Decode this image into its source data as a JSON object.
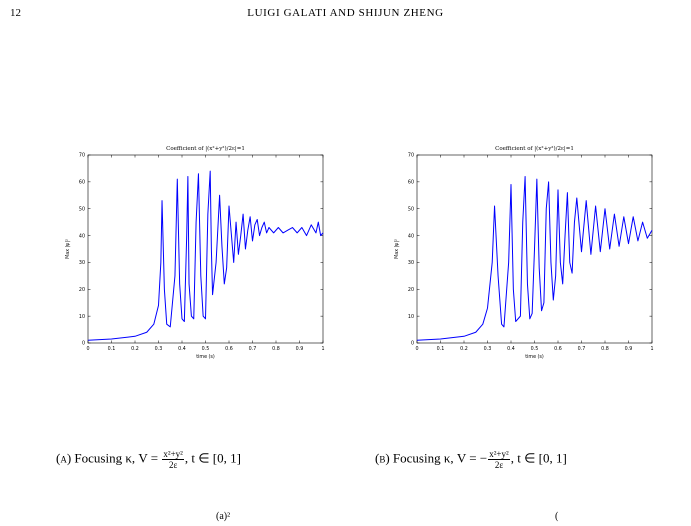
{
  "header": {
    "page_number": "12",
    "running_head": "LUIGI GALATI AND SHIJUN ZHENG"
  },
  "figures": [
    {
      "title": "Coefficient of |(x²+y²)/2ε|=1",
      "ylabel": "Max |ψ|²",
      "xlabel": "time (s)"
    },
    {
      "title": "Coefficient of |(x²+y²)/2ε|=1",
      "ylabel": "Max |ψ|²",
      "xlabel": "time (s)"
    }
  ],
  "captions": [
    {
      "label": "(a)",
      "text_before": "Focusing κ, V = ",
      "num": "x²+y²",
      "den": "2ε",
      "text_after": ", t ∈ [0, 1]"
    },
    {
      "label": "(b)",
      "text_before": "Focusing κ,  V = −",
      "num": "x²+y²",
      "den": "2ε",
      "text_after": ", t ∈ [0, 1]"
    }
  ],
  "bottom_text": [
    "(a)²",
    "("
  ],
  "chart_data": [
    {
      "type": "line",
      "title": "Coefficient of |(x²+y²)/2ε|=1",
      "xlabel": "time (s)",
      "ylabel": "Max |ψ|²",
      "xlim": [
        0,
        1
      ],
      "ylim": [
        0,
        70
      ],
      "xticks": [
        "0",
        "0.1",
        "0.2",
        "0.3",
        "0.4",
        "0.5",
        "0.6",
        "0.7",
        "0.8",
        "0.9",
        "1"
      ],
      "yticks": [
        "0",
        "10",
        "20",
        "30",
        "40",
        "50",
        "60",
        "70"
      ],
      "color": "#0000ff",
      "series": [
        {
          "x": [
            0,
            0.1,
            0.2,
            0.25,
            0.28,
            0.3,
            0.31,
            0.315,
            0.325,
            0.335,
            0.35,
            0.37,
            0.38,
            0.39,
            0.4,
            0.41,
            0.42,
            0.425,
            0.43,
            0.44,
            0.45,
            0.46,
            0.47,
            0.48,
            0.49,
            0.5,
            0.51,
            0.52,
            0.525,
            0.53,
            0.545,
            0.56,
            0.57,
            0.58,
            0.59,
            0.6,
            0.62,
            0.63,
            0.64,
            0.65,
            0.66,
            0.67,
            0.68,
            0.69,
            0.7,
            0.71,
            0.72,
            0.73,
            0.74,
            0.75,
            0.76,
            0.77,
            0.79,
            0.81,
            0.83,
            0.85,
            0.87,
            0.89,
            0.91,
            0.93,
            0.95,
            0.97,
            0.98,
            0.99,
            1.0
          ],
          "y": [
            1,
            1.5,
            2.5,
            4,
            7,
            14,
            30,
            53,
            20,
            7,
            6,
            25,
            61,
            22,
            9,
            8,
            40,
            62,
            22,
            10,
            9,
            45,
            63,
            25,
            10,
            9,
            48,
            64,
            35,
            18,
            30,
            55,
            36,
            22,
            28,
            51,
            30,
            45,
            33,
            40,
            48,
            35,
            42,
            47,
            38,
            44,
            46,
            40,
            43,
            45,
            41,
            43,
            41,
            43,
            41,
            42,
            43,
            41,
            43,
            40,
            44,
            41,
            45,
            40,
            41
          ]
        }
      ]
    },
    {
      "type": "line",
      "title": "Coefficient of |(x²+y²)/2ε|=1",
      "xlabel": "time (s)",
      "ylabel": "Max |ψ|²",
      "xlim": [
        0,
        1
      ],
      "ylim": [
        0,
        70
      ],
      "xticks": [
        "0",
        "0.1",
        "0.2",
        "0.3",
        "0.4",
        "0.5",
        "0.6",
        "0.7",
        "0.8",
        "0.9",
        "1"
      ],
      "yticks": [
        "0",
        "10",
        "20",
        "30",
        "40",
        "50",
        "60",
        "70"
      ],
      "color": "#0000ff",
      "series": [
        {
          "x": [
            0,
            0.1,
            0.2,
            0.25,
            0.28,
            0.3,
            0.32,
            0.33,
            0.345,
            0.36,
            0.37,
            0.39,
            0.4,
            0.41,
            0.42,
            0.44,
            0.45,
            0.46,
            0.47,
            0.48,
            0.49,
            0.5,
            0.51,
            0.52,
            0.53,
            0.54,
            0.55,
            0.56,
            0.57,
            0.58,
            0.59,
            0.6,
            0.61,
            0.62,
            0.63,
            0.64,
            0.65,
            0.66,
            0.67,
            0.68,
            0.7,
            0.72,
            0.74,
            0.76,
            0.78,
            0.8,
            0.82,
            0.84,
            0.86,
            0.88,
            0.9,
            0.92,
            0.94,
            0.96,
            0.98,
            1.0
          ],
          "y": [
            1,
            1.5,
            2.5,
            4,
            7,
            13,
            30,
            51,
            25,
            7,
            6,
            30,
            59,
            20,
            8,
            10,
            45,
            62,
            22,
            9,
            11,
            35,
            61,
            28,
            12,
            15,
            50,
            60,
            30,
            16,
            25,
            57,
            30,
            22,
            40,
            56,
            30,
            26,
            45,
            54,
            34,
            53,
            33,
            51,
            34,
            50,
            35,
            48,
            36,
            47,
            37,
            47,
            38,
            45,
            39,
            42
          ]
        }
      ]
    }
  ]
}
